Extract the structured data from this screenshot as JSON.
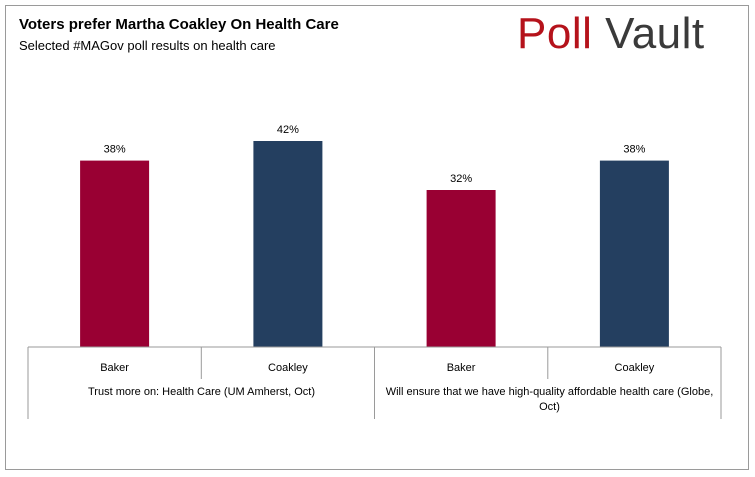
{
  "header": {
    "title": "Voters prefer Martha Coakley On Health Care",
    "subtitle": "Selected #MAGov poll results on health care",
    "logo_word1": "Poll",
    "logo_word2": "Vault"
  },
  "colors": {
    "baker": "#990033",
    "coakley": "#243f60",
    "axis": "#9a9a9a",
    "logo_red": "#b5121b",
    "logo_gray": "#3a3a3a"
  },
  "chart_data": {
    "type": "bar",
    "title": "Voters prefer Martha Coakley On Health Care",
    "subtitle": "Selected #MAGov poll results on health care",
    "groups": [
      "Trust more on: Health Care (UM Amherst, Oct)",
      "Will ensure that we have high-quality affordable health care (Globe, Oct)"
    ],
    "categories": [
      "Baker",
      "Coakley",
      "Baker",
      "Coakley"
    ],
    "values": [
      38,
      42,
      32,
      38
    ],
    "value_labels": [
      "38%",
      "42%",
      "32%",
      "38%"
    ],
    "bar_colors": [
      "#990033",
      "#243f60",
      "#990033",
      "#243f60"
    ],
    "ylim": [
      0,
      42
    ],
    "grid": false,
    "legend": "none"
  }
}
